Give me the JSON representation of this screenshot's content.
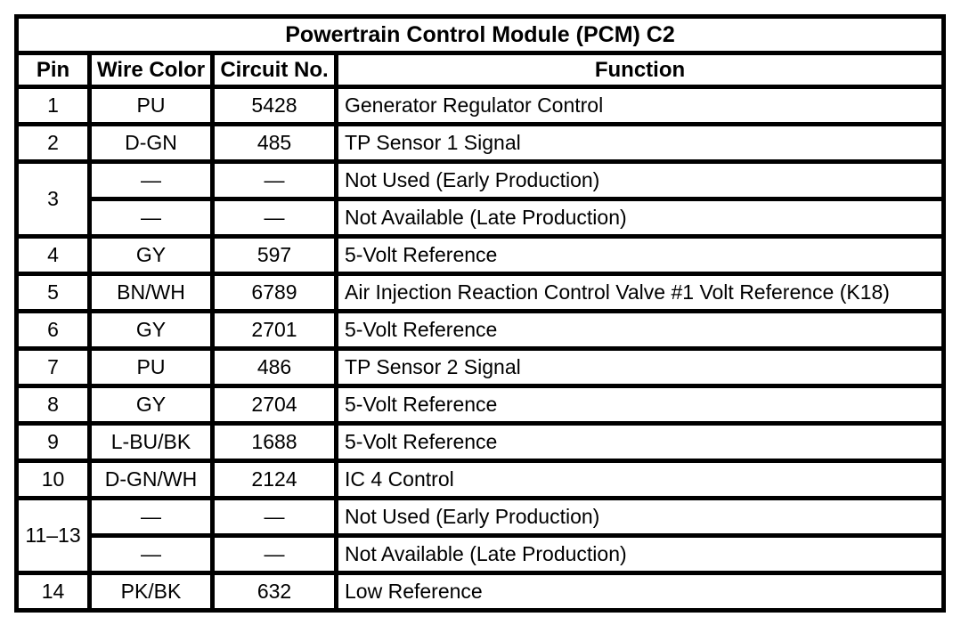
{
  "table": {
    "title": "Powertrain Control Module (PCM) C2",
    "columns": [
      "Pin",
      "Wire Color",
      "Circuit No.",
      "Function"
    ],
    "empty_marker": "—",
    "rows": [
      {
        "pin": "1",
        "pin_rowspan": 1,
        "wire_color": "PU",
        "circuit_no": "5428",
        "function": "Generator Regulator Control"
      },
      {
        "pin": "2",
        "pin_rowspan": 1,
        "wire_color": "D-GN",
        "circuit_no": "485",
        "function": "TP Sensor 1 Signal"
      },
      {
        "pin": "3",
        "pin_rowspan": 2,
        "wire_color": "—",
        "circuit_no": "—",
        "function": "Not Used (Early Production)"
      },
      {
        "pin": null,
        "wire_color": "—",
        "circuit_no": "—",
        "function": "Not Available (Late Production)"
      },
      {
        "pin": "4",
        "pin_rowspan": 1,
        "wire_color": "GY",
        "circuit_no": "597",
        "function": "5-Volt Reference"
      },
      {
        "pin": "5",
        "pin_rowspan": 1,
        "wire_color": "BN/WH",
        "circuit_no": "6789",
        "function": "Air Injection Reaction Control Valve #1 Volt Reference (K18)"
      },
      {
        "pin": "6",
        "pin_rowspan": 1,
        "wire_color": "GY",
        "circuit_no": "2701",
        "function": "5-Volt Reference"
      },
      {
        "pin": "7",
        "pin_rowspan": 1,
        "wire_color": "PU",
        "circuit_no": "486",
        "function": "TP Sensor 2 Signal"
      },
      {
        "pin": "8",
        "pin_rowspan": 1,
        "wire_color": "GY",
        "circuit_no": "2704",
        "function": "5-Volt Reference"
      },
      {
        "pin": "9",
        "pin_rowspan": 1,
        "wire_color": "L-BU/BK",
        "circuit_no": "1688",
        "function": "5-Volt Reference"
      },
      {
        "pin": "10",
        "pin_rowspan": 1,
        "wire_color": "D-GN/WH",
        "circuit_no": "2124",
        "function": "IC 4 Control"
      },
      {
        "pin": "11–13",
        "pin_rowspan": 2,
        "wire_color": "—",
        "circuit_no": "—",
        "function": "Not Used (Early Production)"
      },
      {
        "pin": null,
        "wire_color": "—",
        "circuit_no": "—",
        "function": "Not Available (Late Production)"
      },
      {
        "pin": "14",
        "pin_rowspan": 1,
        "wire_color": "PK/BK",
        "circuit_no": "632",
        "function": "Low Reference"
      }
    ]
  }
}
